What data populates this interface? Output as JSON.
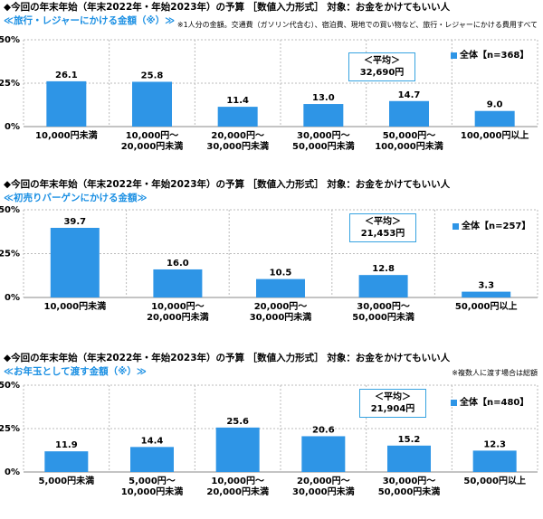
{
  "chart_data": [
    {
      "type": "bar",
      "title": "◆今回の年末年始（年末2022年・年始2023年）の予算 ［数値入力形式］ 対象：お金をかけてもいい人",
      "subtitle": "≪旅行・レジャーにかける金額（※）≫",
      "note": "※1人分の金額。交通費（ガソリン代含む）、宿泊費、現地での買い物など、旅行・レジャーにかける費用すべて",
      "categories": [
        "10,000円未満",
        "10,000円～\n20,000円未満",
        "20,000円～\n30,000円未満",
        "30,000円～\n50,000円未満",
        "50,000円～\n100,000円未満",
        "100,000円以上"
      ],
      "values": [
        26.1,
        25.8,
        11.4,
        13.0,
        14.7,
        9.0
      ],
      "series": [
        {
          "name": "全体【n=368】",
          "values": [
            26.1,
            25.8,
            11.4,
            13.0,
            14.7,
            9.0
          ]
        }
      ],
      "legend": "全体【n=368】",
      "average_label": "＜平均＞",
      "average_value": "32,690円",
      "yticks": [
        "0%",
        "25%",
        "50%"
      ],
      "ylim": [
        0,
        50
      ],
      "color": "#2e95e6"
    },
    {
      "type": "bar",
      "title": "◆今回の年末年始（年末2022年・年始2023年）の予算 ［数値入力形式］ 対象：お金をかけてもいい人",
      "subtitle": "≪初売りバーゲンにかける金額≫",
      "note": "",
      "categories": [
        "10,000円未満",
        "10,000円～\n20,000円未満",
        "20,000円～\n30,000円未満",
        "30,000円～\n50,000円未満",
        "50,000円以上"
      ],
      "values": [
        39.7,
        16.0,
        10.5,
        12.8,
        3.3
      ],
      "series": [
        {
          "name": "全体【n=257】",
          "values": [
            39.7,
            16.0,
            10.5,
            12.8,
            3.3
          ]
        }
      ],
      "legend": "全体【n=257】",
      "average_label": "＜平均＞",
      "average_value": "21,453円",
      "yticks": [
        "0%",
        "25%",
        "50%"
      ],
      "ylim": [
        0,
        50
      ],
      "color": "#2e95e6"
    },
    {
      "type": "bar",
      "title": "◆今回の年末年始（年末2022年・年始2023年）の予算 ［数値入力形式］ 対象：お金をかけてもいい人",
      "subtitle": "≪お年玉として渡す金額（※）≫",
      "note": "※複数人に渡す場合は総額",
      "categories": [
        "5,000円未満",
        "5,000円～\n10,000円未満",
        "10,000円～\n20,000円未満",
        "20,000円～\n30,000円未満",
        "30,000円～\n50,000円未満",
        "50,000円以上"
      ],
      "values": [
        11.9,
        14.4,
        25.6,
        20.6,
        15.2,
        12.3
      ],
      "series": [
        {
          "name": "全体【n=480】",
          "values": [
            11.9,
            14.4,
            25.6,
            20.6,
            15.2,
            12.3
          ]
        }
      ],
      "legend": "全体【n=480】",
      "average_label": "＜平均＞",
      "average_value": "21,904円",
      "yticks": [
        "0%",
        "25%",
        "50%"
      ],
      "ylim": [
        0,
        50
      ],
      "color": "#2e95e6"
    }
  ]
}
